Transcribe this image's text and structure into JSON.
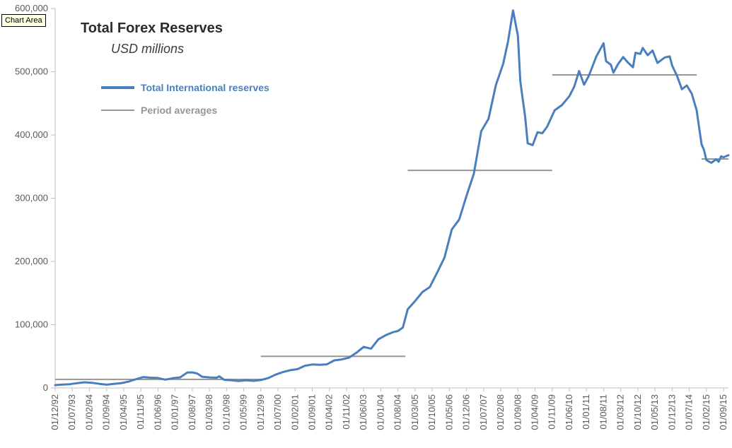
{
  "tooltip": {
    "label": "Chart Area"
  },
  "chart_data": {
    "type": "line",
    "title": "Total Forex Reserves",
    "subtitle": "USD millions",
    "grid": false,
    "legend_position": "top-left-inside",
    "ylim": [
      0,
      600000
    ],
    "y_ticks": [
      0,
      100000,
      200000,
      300000,
      400000,
      500000,
      600000
    ],
    "y_tick_labels": [
      "0",
      "100,000",
      "200,000",
      "300,000",
      "400,000",
      "500,000",
      "600,000"
    ],
    "months_per_tick": 7,
    "x_total_months": 275,
    "x_tick_labels": [
      "01/12/92",
      "01/07/93",
      "01/02/94",
      "01/09/94",
      "01/04/95",
      "01/11/95",
      "01/06/96",
      "01/01/97",
      "01/08/97",
      "01/03/98",
      "01/10/98",
      "01/05/99",
      "01/12/99",
      "01/07/00",
      "01/02/01",
      "01/09/01",
      "01/04/02",
      "01/11/02",
      "01/06/03",
      "01/01/04",
      "01/08/04",
      "01/03/05",
      "01/10/05",
      "01/05/06",
      "01/12/06",
      "01/07/07",
      "01/02/08",
      "01/09/08",
      "01/04/09",
      "01/11/09",
      "01/06/10",
      "01/01/11",
      "01/08/11",
      "01/03/12",
      "01/10/12",
      "01/05/13",
      "01/12/13",
      "01/07/14",
      "01/02/15",
      "01/09/15"
    ],
    "colors": {
      "axis_labels": "#595959",
      "axis_lines": "#bfbfbf",
      "background": "#ffffff",
      "tooltip_background": "#ffffe1"
    },
    "series": [
      {
        "name": "Total International reserves",
        "color": "#4a7fbe",
        "points": [
          [
            0,
            4500
          ],
          [
            3,
            5300
          ],
          [
            6,
            5900
          ],
          [
            9,
            7600
          ],
          [
            12,
            8900
          ],
          [
            15,
            8200
          ],
          [
            18,
            6500
          ],
          [
            21,
            5100
          ],
          [
            24,
            6500
          ],
          [
            27,
            7600
          ],
          [
            30,
            10000
          ],
          [
            33,
            13700
          ],
          [
            36,
            17200
          ],
          [
            39,
            16200
          ],
          [
            42,
            15700
          ],
          [
            45,
            13100
          ],
          [
            48,
            15300
          ],
          [
            51,
            16600
          ],
          [
            54,
            24500
          ],
          [
            56,
            24600
          ],
          [
            58,
            22900
          ],
          [
            60,
            17800
          ],
          [
            63,
            16600
          ],
          [
            66,
            16200
          ],
          [
            67,
            18400
          ],
          [
            69,
            12800
          ],
          [
            72,
            12200
          ],
          [
            75,
            10800
          ],
          [
            78,
            12200
          ],
          [
            81,
            11200
          ],
          [
            84,
            12500
          ],
          [
            87,
            15500
          ],
          [
            90,
            21000
          ],
          [
            93,
            25000
          ],
          [
            96,
            28000
          ],
          [
            99,
            29700
          ],
          [
            102,
            35100
          ],
          [
            105,
            37100
          ],
          [
            108,
            36600
          ],
          [
            111,
            37300
          ],
          [
            114,
            43600
          ],
          [
            117,
            45000
          ],
          [
            120,
            47800
          ],
          [
            123,
            55500
          ],
          [
            126,
            64900
          ],
          [
            129,
            62100
          ],
          [
            132,
            76900
          ],
          [
            135,
            83400
          ],
          [
            138,
            88200
          ],
          [
            140,
            90000
          ],
          [
            142,
            95500
          ],
          [
            144,
            124500
          ],
          [
            147,
            137400
          ],
          [
            150,
            151600
          ],
          [
            153,
            159600
          ],
          [
            156,
            182200
          ],
          [
            159,
            205900
          ],
          [
            162,
            250600
          ],
          [
            165,
            266200
          ],
          [
            168,
            303700
          ],
          [
            171,
            338800
          ],
          [
            174,
            405800
          ],
          [
            177,
            425400
          ],
          [
            180,
            478800
          ],
          [
            183,
            512600
          ],
          [
            185,
            548300
          ],
          [
            187,
            597000
          ],
          [
            189,
            556800
          ],
          [
            190,
            484600
          ],
          [
            191,
            455700
          ],
          [
            192,
            427100
          ],
          [
            193,
            386900
          ],
          [
            195,
            383900
          ],
          [
            197,
            404200
          ],
          [
            199,
            402800
          ],
          [
            201,
            413400
          ],
          [
            204,
            439000
          ],
          [
            207,
            447400
          ],
          [
            210,
            461200
          ],
          [
            212,
            476300
          ],
          [
            214,
            501100
          ],
          [
            216,
            479400
          ],
          [
            218,
            493800
          ],
          [
            221,
            524000
          ],
          [
            224,
            545000
          ],
          [
            225,
            516800
          ],
          [
            227,
            510900
          ],
          [
            228,
            498600
          ],
          [
            230,
            512600
          ],
          [
            232,
            523200
          ],
          [
            234,
            514300
          ],
          [
            236,
            507000
          ],
          [
            237,
            529900
          ],
          [
            239,
            528200
          ],
          [
            240,
            537600
          ],
          [
            242,
            526200
          ],
          [
            244,
            533500
          ],
          [
            246,
            513800
          ],
          [
            249,
            522600
          ],
          [
            251,
            524300
          ],
          [
            252,
            509600
          ],
          [
            254,
            493300
          ],
          [
            256,
            472300
          ],
          [
            258,
            478300
          ],
          [
            260,
            465200
          ],
          [
            262,
            439100
          ],
          [
            264,
            385500
          ],
          [
            265,
            376200
          ],
          [
            266,
            360200
          ],
          [
            268,
            356000
          ],
          [
            270,
            361600
          ],
          [
            271,
            357600
          ],
          [
            272,
            366300
          ],
          [
            273,
            364700
          ],
          [
            275,
            368000
          ]
        ]
      }
    ],
    "period_averages": {
      "name": "Period averages",
      "color": "#969696",
      "segments": [
        [
          0,
          86,
          13500
        ],
        [
          84,
          143,
          50000
        ],
        [
          144,
          203,
          344000
        ],
        [
          203,
          262,
          495000
        ],
        [
          264,
          275,
          362000
        ]
      ]
    }
  }
}
